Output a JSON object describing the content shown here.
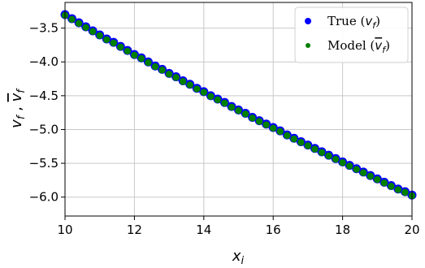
{
  "chart_data": {
    "type": "scatter",
    "xlabel": "x_i",
    "ylabel": "v_f , v̄_f",
    "xlim": [
      10,
      20
    ],
    "ylim": [
      -6.28,
      -3.12
    ],
    "xticks": [
      "10",
      "12",
      "14",
      "16",
      "18",
      "20"
    ],
    "yticks": [
      "−3.5",
      "−4.0",
      "−4.5",
      "−5.0",
      "−5.5",
      "−6.0"
    ],
    "grid": true,
    "legend_position": "top-right",
    "series": [
      {
        "name": "True (v_f)",
        "color": "#0000ff",
        "marker": "circle",
        "x": [
          10.0,
          10.2,
          10.4,
          10.6,
          10.8,
          11.0,
          11.2,
          11.4,
          11.6,
          11.8,
          12.0,
          12.2,
          12.4,
          12.6,
          12.8,
          13.0,
          13.2,
          13.4,
          13.6,
          13.8,
          14.0,
          14.2,
          14.4,
          14.6,
          14.8,
          15.0,
          15.2,
          15.4,
          15.6,
          15.8,
          16.0,
          16.2,
          16.4,
          16.6,
          16.8,
          17.0,
          17.2,
          17.4,
          17.6,
          17.8,
          18.0,
          18.2,
          18.4,
          18.6,
          18.8,
          19.0,
          19.2,
          19.4,
          19.6,
          19.8,
          20.0
        ],
        "y": [
          -3.3,
          -3.36,
          -3.42,
          -3.48,
          -3.54,
          -3.6,
          -3.66,
          -3.71,
          -3.77,
          -3.83,
          -3.89,
          -3.94,
          -4.0,
          -4.06,
          -4.11,
          -4.17,
          -4.22,
          -4.28,
          -4.33,
          -4.39,
          -4.44,
          -4.5,
          -4.55,
          -4.6,
          -4.66,
          -4.71,
          -4.76,
          -4.82,
          -4.87,
          -4.92,
          -4.97,
          -5.02,
          -5.08,
          -5.13,
          -5.18,
          -5.23,
          -5.28,
          -5.33,
          -5.38,
          -5.43,
          -5.48,
          -5.53,
          -5.58,
          -5.63,
          -5.68,
          -5.73,
          -5.78,
          -5.83,
          -5.88,
          -5.92,
          -5.97
        ]
      },
      {
        "name": "Model (v̄_f)",
        "color": "#008000",
        "marker": "circle",
        "x": [
          10.0,
          10.2,
          10.4,
          10.6,
          10.8,
          11.0,
          11.2,
          11.4,
          11.6,
          11.8,
          12.0,
          12.2,
          12.4,
          12.6,
          12.8,
          13.0,
          13.2,
          13.4,
          13.6,
          13.8,
          14.0,
          14.2,
          14.4,
          14.6,
          14.8,
          15.0,
          15.2,
          15.4,
          15.6,
          15.8,
          16.0,
          16.2,
          16.4,
          16.6,
          16.8,
          17.0,
          17.2,
          17.4,
          17.6,
          17.8,
          18.0,
          18.2,
          18.4,
          18.6,
          18.8,
          19.0,
          19.2,
          19.4,
          19.6,
          19.8,
          20.0
        ],
        "y": [
          -3.31,
          -3.37,
          -3.43,
          -3.49,
          -3.55,
          -3.61,
          -3.67,
          -3.72,
          -3.78,
          -3.84,
          -3.9,
          -3.95,
          -4.01,
          -4.07,
          -4.12,
          -4.18,
          -4.23,
          -4.29,
          -4.34,
          -4.4,
          -4.45,
          -4.51,
          -4.56,
          -4.61,
          -4.67,
          -4.72,
          -4.77,
          -4.83,
          -4.88,
          -4.93,
          -4.98,
          -5.03,
          -5.09,
          -5.14,
          -5.19,
          -5.24,
          -5.29,
          -5.34,
          -5.39,
          -5.44,
          -5.49,
          -5.54,
          -5.59,
          -5.64,
          -5.69,
          -5.74,
          -5.79,
          -5.84,
          -5.89,
          -5.93,
          -5.98
        ]
      }
    ]
  }
}
